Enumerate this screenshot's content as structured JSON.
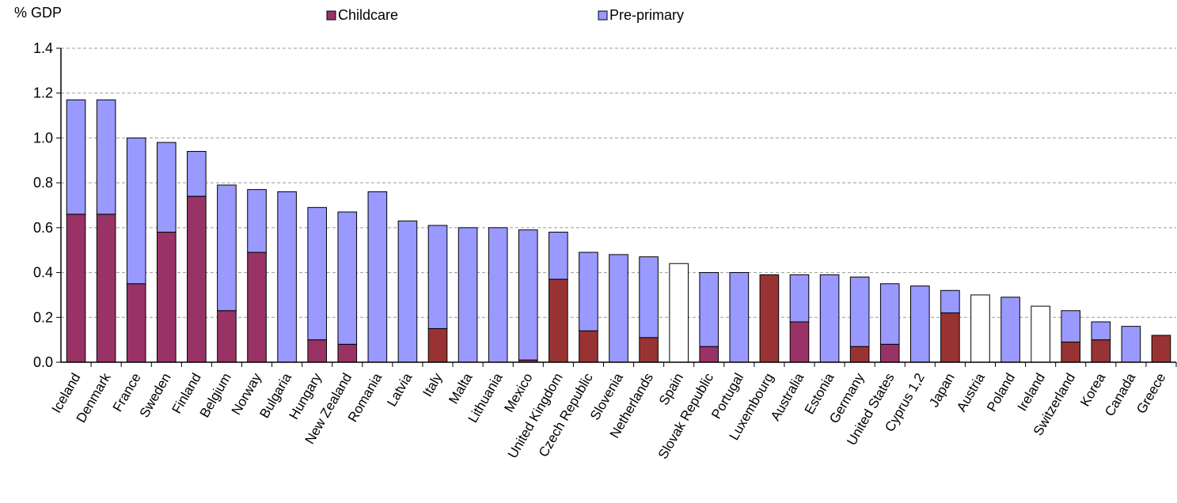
{
  "chart_data": {
    "type": "bar",
    "stacked": true,
    "title": "",
    "xlabel": "",
    "ylabel": "% GDP",
    "ylim": [
      0,
      1.4
    ],
    "yticks": [
      "0.0",
      "0.2",
      "0.4",
      "0.6",
      "0.8",
      "1.0",
      "1.2",
      "1.4"
    ],
    "grid": true,
    "legend_position": "top",
    "categories": [
      "Iceland",
      "Denmark",
      "France",
      "Sweden",
      "Finland",
      "Belgium",
      "Norway",
      "Bulgaria",
      "Hungary",
      "New Zealand",
      "Romania",
      "Latvia",
      "Italy",
      "Malta",
      "Lithuania",
      "Mexico",
      "United Kingdom",
      "Czech Republic",
      "Slovenia",
      "Netherlands",
      "Spain",
      "Slovak Republic",
      "Portugal",
      "Luxembourg",
      "Australia",
      "Estonia",
      "Germany",
      "United States",
      "Cyprus 1,2",
      "Japan",
      "Austria",
      "Poland",
      "Ireland",
      "Switzerland",
      "Korea",
      "Canada",
      "Greece"
    ],
    "series": [
      {
        "name": "Childcare",
        "color": "#993366",
        "values": [
          0.66,
          0.66,
          0.35,
          0.58,
          0.74,
          0.23,
          0.49,
          0,
          0.1,
          0.08,
          0,
          0,
          0.15,
          0,
          0,
          0.01,
          0.37,
          0.14,
          0,
          0.11,
          0,
          0.07,
          0,
          0.39,
          0.18,
          0,
          0.07,
          0.08,
          0,
          0.22,
          0,
          0,
          0,
          0.09,
          0.1,
          0,
          0.12
        ]
      },
      {
        "name": "Pre-primary",
        "color": "#9999FF",
        "values": [
          0.51,
          0.51,
          0.65,
          0.4,
          0.2,
          0.56,
          0.28,
          0.76,
          0.59,
          0.59,
          0.76,
          0.63,
          0.46,
          0.6,
          0.6,
          0.58,
          0.21,
          0.35,
          0.48,
          0.36,
          0.44,
          0.33,
          0.4,
          0,
          0.21,
          0.39,
          0.31,
          0.27,
          0.34,
          0.1,
          0.3,
          0.29,
          0.25,
          0.14,
          0.08,
          0.16,
          0
        ]
      }
    ],
    "bar_colors": {
      "Childcare": [
        "#993366",
        "#993366",
        "#993366",
        "#993366",
        "#993366",
        "#993366",
        "#993366",
        "#993366",
        "#993366",
        "#993366",
        "#993366",
        "#993366",
        "#993333",
        "#993366",
        "#993366",
        "#993366",
        "#993333",
        "#993333",
        "#993366",
        "#993333",
        "#993366",
        "#993366",
        "#993366",
        "#993333",
        "#993366",
        "#993366",
        "#993333",
        "#993366",
        "#993366",
        "#993333",
        "#993366",
        "#993366",
        "#993366",
        "#993333",
        "#993333",
        "#993366",
        "#993333"
      ],
      "Pre-primary": [
        "#9999FF",
        "#9999FF",
        "#9999FF",
        "#9999FF",
        "#9999FF",
        "#9999FF",
        "#9999FF",
        "#9999FF",
        "#9999FF",
        "#9999FF",
        "#9999FF",
        "#9999FF",
        "#9999FF",
        "#9999FF",
        "#9999FF",
        "#9999FF",
        "#9999FF",
        "#9999FF",
        "#9999FF",
        "#9999FF",
        "#FFFFFF",
        "#9999FF",
        "#9999FF",
        "#9999FF",
        "#9999FF",
        "#9999FF",
        "#9999FF",
        "#9999FF",
        "#9999FF",
        "#9999FF",
        "#FFFFFF",
        "#9999FF",
        "#FFFFFF",
        "#9999FF",
        "#9999FF",
        "#9999FF",
        "#9999FF"
      ]
    }
  }
}
